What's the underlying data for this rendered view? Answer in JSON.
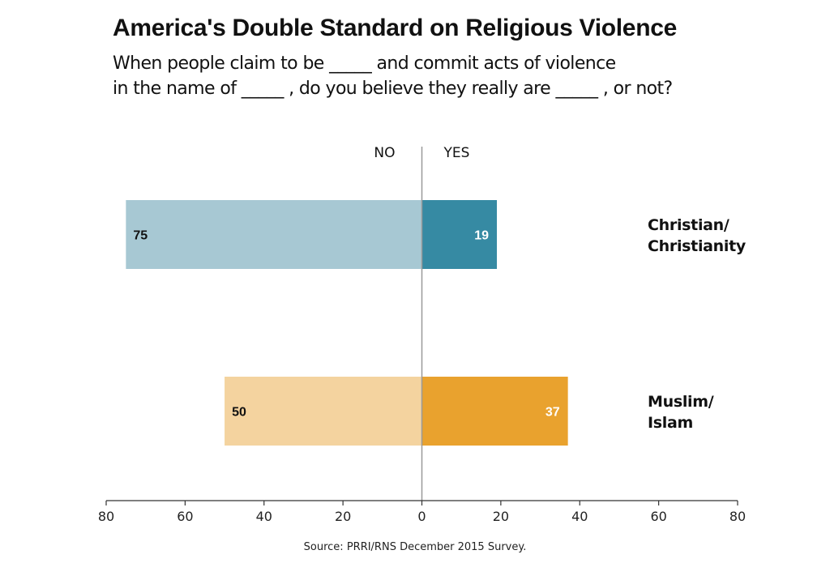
{
  "chart_data": {
    "type": "bar",
    "orientation": "horizontal-diverging",
    "title": "America's Double Standard on Religious Violence",
    "subtitle_lines": [
      "When people claim to be _____ and commit acts of violence",
      "in the name of _____ , do you believe they really are _____ , or not?"
    ],
    "side_labels": {
      "left": "NO",
      "right": "YES"
    },
    "categories": [
      "Christian/\nChristianity",
      "Muslim/\nIslam"
    ],
    "category_lines": [
      [
        "Christian/",
        "Christianity"
      ],
      [
        "Muslim/",
        "Islam"
      ]
    ],
    "series": [
      {
        "name": "NO",
        "values": [
          75,
          50
        ],
        "colors": [
          "#a7c8d3",
          "#f4d39f"
        ]
      },
      {
        "name": "YES",
        "values": [
          19,
          37
        ],
        "colors": [
          "#368aa3",
          "#e9a22e"
        ]
      }
    ],
    "xlim": [
      -80,
      80
    ],
    "xticks": [
      -80,
      -60,
      -40,
      -20,
      0,
      20,
      40,
      60,
      80
    ],
    "xtick_labels": [
      "80",
      "60",
      "40",
      "20",
      "0",
      "20",
      "40",
      "60",
      "80"
    ],
    "grid": false,
    "source": "Source: PRRI/RNS December 2015 Survey."
  }
}
